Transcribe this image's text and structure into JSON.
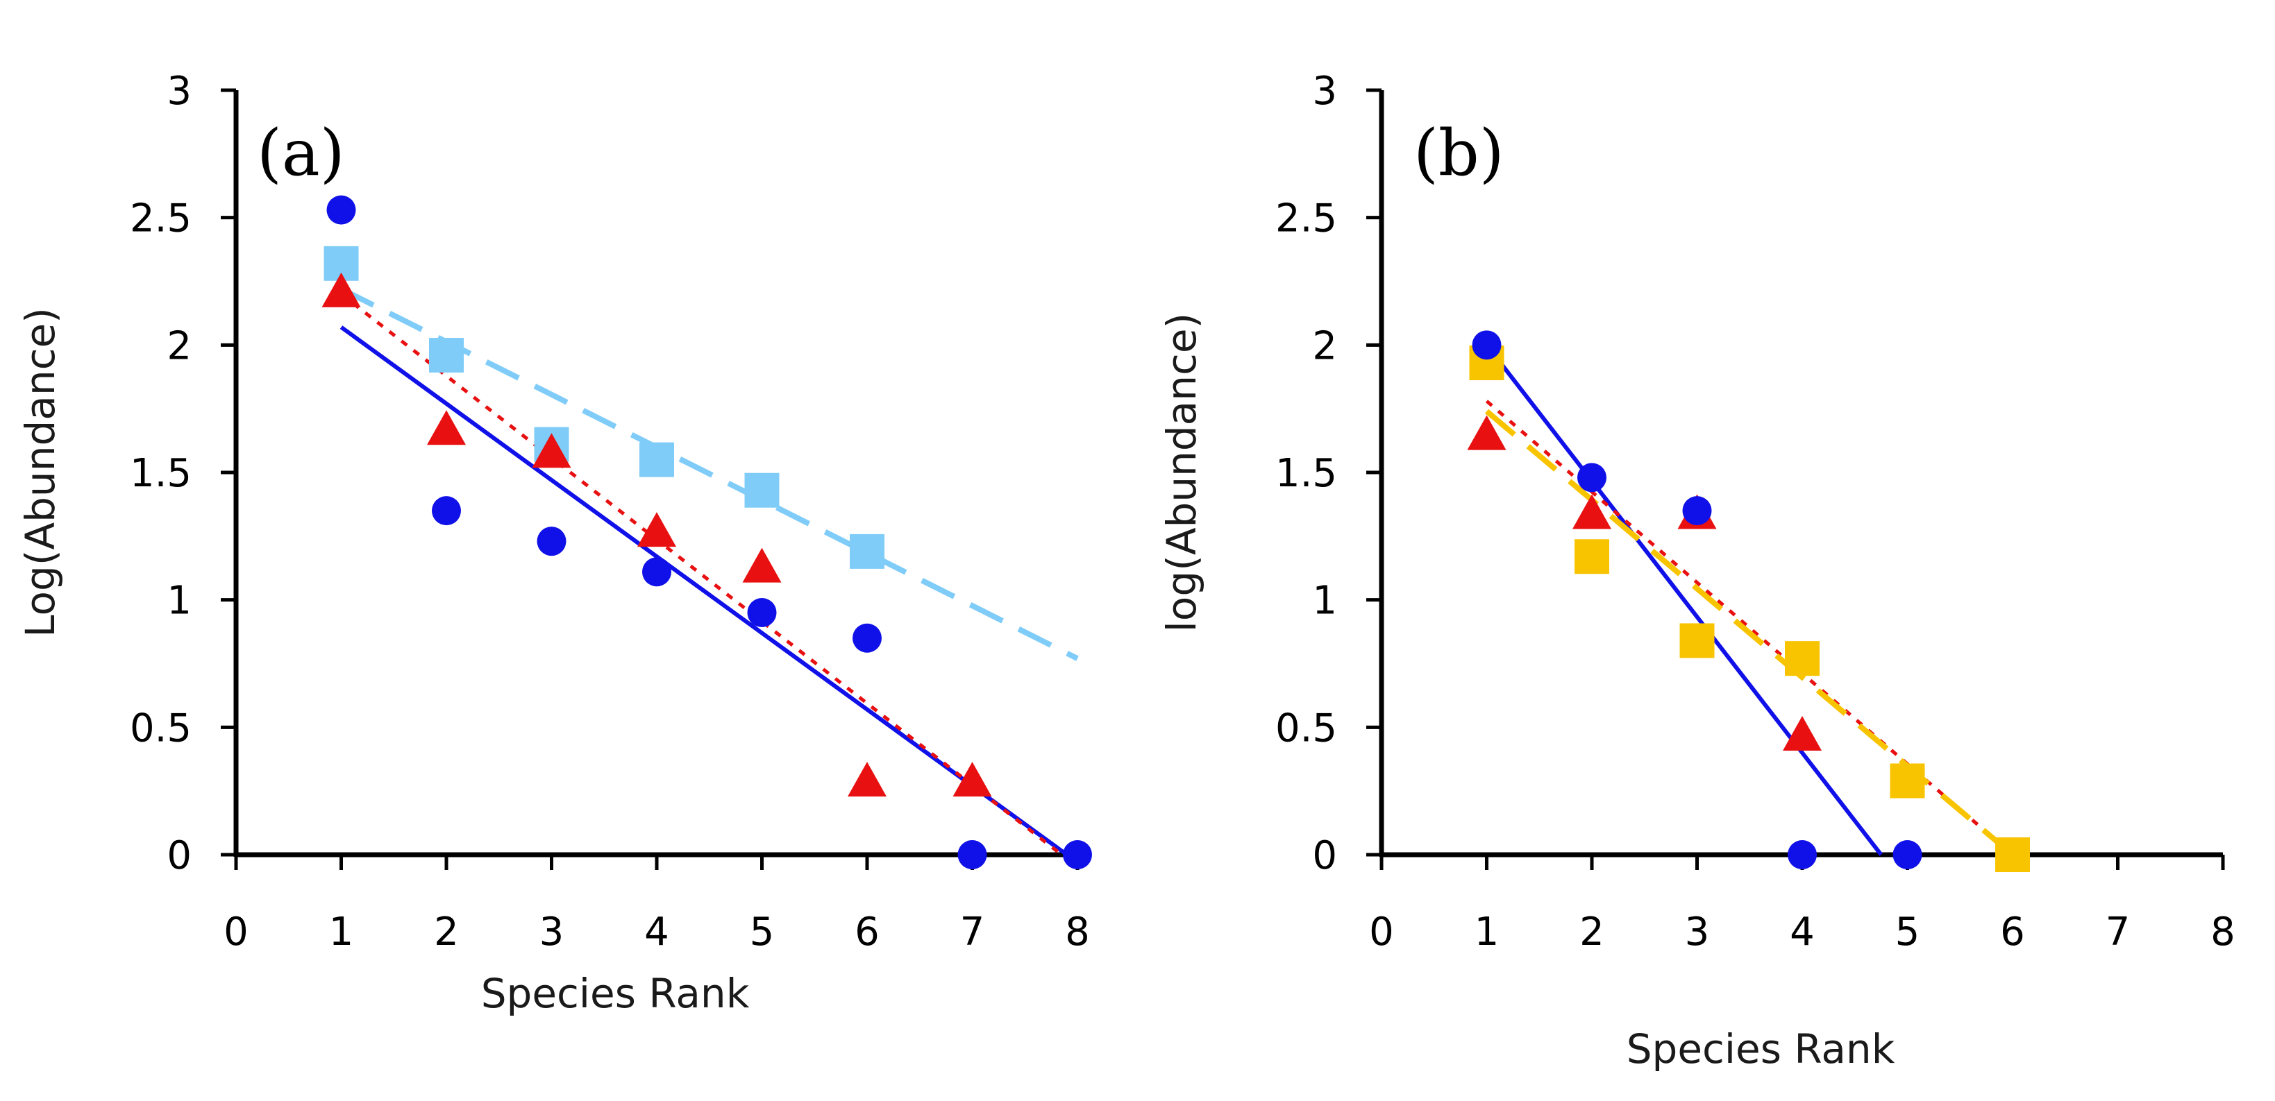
{
  "colors": {
    "blue": "#1010e8",
    "red": "#e81010",
    "light_blue": "#80ccf8",
    "yellow": "#f8c400",
    "axis": "#000000"
  },
  "chart_data": [
    {
      "type": "scatter",
      "panel_label": "(a)",
      "xlabel": "Species Rank",
      "ylabel": "Log(Abundance)",
      "xlim": [
        0,
        8
      ],
      "ylim": [
        0,
        3
      ],
      "xticks": [
        "0",
        "1",
        "2",
        "3",
        "4",
        "5",
        "6",
        "7",
        "8"
      ],
      "yticks": [
        "0",
        "0.5",
        "1",
        "1.5",
        "2",
        "2.5",
        "3"
      ],
      "series": [
        {
          "name": "circles",
          "marker": "circle",
          "color": "#1010e8",
          "x": [
            1,
            2,
            3,
            4,
            5,
            6,
            7,
            8
          ],
          "y": [
            2.53,
            1.35,
            1.23,
            1.11,
            0.95,
            0.85,
            0.0,
            0.0
          ],
          "trend": {
            "style": "solid",
            "x": [
              1,
              7.9
            ],
            "y": [
              2.07,
              0.0
            ]
          }
        },
        {
          "name": "triangles",
          "marker": "triangle",
          "color": "#e81010",
          "x": [
            1,
            2,
            3,
            4,
            5,
            6,
            7
          ],
          "y": [
            2.2,
            1.66,
            1.57,
            1.26,
            1.12,
            0.28,
            0.28
          ],
          "trend": {
            "style": "dotted",
            "x": [
              1,
              7.85
            ],
            "y": [
              2.2,
              0.0
            ]
          }
        },
        {
          "name": "squares",
          "marker": "square",
          "color": "#80ccf8",
          "x": [
            1,
            2,
            3,
            4,
            5,
            6
          ],
          "y": [
            2.32,
            1.96,
            1.61,
            1.55,
            1.43,
            1.19
          ],
          "trend": {
            "style": "dashed",
            "x": [
              1,
              8
            ],
            "y": [
              2.22,
              0.77
            ]
          }
        }
      ]
    },
    {
      "type": "scatter",
      "panel_label": "(b)",
      "xlabel": "Species Rank",
      "ylabel": "log(Abundance)",
      "xlim": [
        0,
        8
      ],
      "ylim": [
        0,
        3
      ],
      "xticks": [
        "0",
        "1",
        "2",
        "3",
        "4",
        "5",
        "6",
        "7",
        "8"
      ],
      "yticks": [
        "0",
        "0.5",
        "1",
        "1.5",
        "2",
        "2.5",
        "3"
      ],
      "series": [
        {
          "name": "circles",
          "marker": "circle",
          "color": "#1010e8",
          "x": [
            1,
            2,
            3,
            4,
            5
          ],
          "y": [
            2.0,
            1.48,
            1.35,
            0.0,
            0.0
          ],
          "trend": {
            "style": "solid",
            "x": [
              1,
              4.75
            ],
            "y": [
              2.0,
              0.0
            ]
          }
        },
        {
          "name": "triangles",
          "marker": "triangle",
          "color": "#e81010",
          "x": [
            1,
            2,
            3,
            4
          ],
          "y": [
            1.64,
            1.33,
            1.33,
            0.46
          ],
          "trend": {
            "style": "dotted",
            "x": [
              1,
              6
            ],
            "y": [
              1.78,
              0.0
            ]
          }
        },
        {
          "name": "squares",
          "marker": "square",
          "color": "#f8c400",
          "x": [
            1,
            2,
            3,
            4,
            5,
            6
          ],
          "y": [
            1.93,
            1.17,
            0.84,
            0.77,
            0.29,
            0.0
          ],
          "trend": {
            "style": "dashed",
            "x": [
              1,
              6
            ],
            "y": [
              1.74,
              0.0
            ]
          }
        }
      ]
    }
  ]
}
